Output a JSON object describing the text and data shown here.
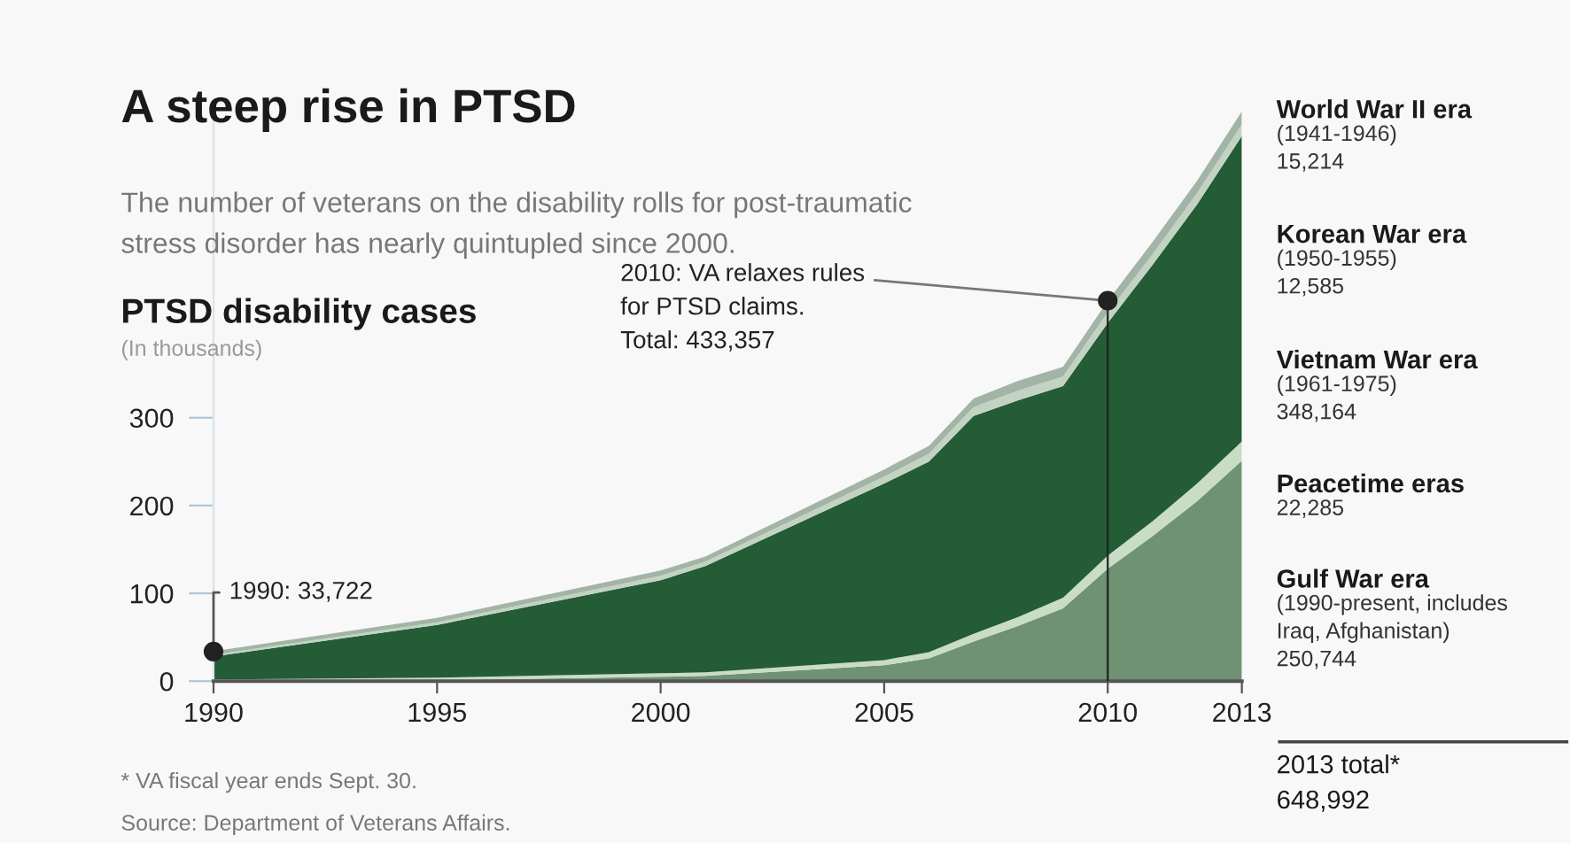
{
  "chart_data": {
    "type": "area",
    "stacked": true,
    "title": "A steep rise in PTSD",
    "subtitle": "The number of veterans on the disability rolls for post-traumatic\nstress disorder has nearly quintupled since 2000.",
    "ylabel": "PTSD disability cases",
    "x": [
      1990,
      1995,
      2000,
      2001,
      2005,
      2006,
      2007,
      2008,
      2009,
      2010,
      2011,
      2012,
      2013
    ],
    "series": [
      {
        "name": "Gulf War era",
        "color": "#6f9272",
        "values": [
          0,
          1,
          5,
          6,
          18,
          26,
          45,
          63,
          83,
          128,
          165,
          205,
          251
        ]
      },
      {
        "name": "Peacetime eras",
        "color": "#c9dcc4",
        "values": [
          2,
          3,
          4,
          4,
          6,
          7,
          9,
          10,
          12,
          15,
          17,
          20,
          22
        ]
      },
      {
        "name": "Vietnam War era",
        "color": "#245c35",
        "values": [
          26,
          60,
          106,
          121,
          201,
          217,
          248,
          247,
          241,
          265,
          292,
          318,
          348
        ]
      },
      {
        "name": "Korean War era",
        "color": "#c3d3c3",
        "values": [
          2,
          3,
          5,
          5,
          8,
          9,
          10,
          11,
          11,
          12,
          12,
          13,
          13
        ]
      },
      {
        "name": "World War II era",
        "color": "#a2b4a5",
        "values": [
          4,
          5,
          6,
          6,
          8,
          9,
          10,
          11,
          11,
          13,
          14,
          14,
          15
        ]
      }
    ],
    "xlim": [
      1990,
      2013
    ],
    "xticks": [
      1990,
      1995,
      2000,
      2005,
      2010,
      2013
    ],
    "ylim": [
      0,
      649
    ],
    "yticks": [
      0,
      100,
      200,
      300
    ],
    "ref_lines": [
      {
        "axis": "x",
        "value": 2010,
        "color": "#222222"
      }
    ],
    "annotations": [
      {
        "text": "1990: 33,722",
        "x": 1990,
        "y": 33.722
      },
      {
        "text": "2010: VA relaxes rules\nfor PTSD claims.\nTotal: 433,357",
        "x": 2010,
        "y": 433.357
      },
      "(In thousands)",
      "(1990-present, includes\nIraq, Afghanistan)\n250,744",
      "22,285",
      "(1961-1975)\n348,164",
      "(1950-1955)\n12,585",
      "(1941-1946)\n15,214",
      "2013 total*\n648,992",
      "* VA fiscal year ends Sept. 30.",
      "Source: Department of Veterans Affairs."
    ],
    "grid": false,
    "legend": false
  }
}
